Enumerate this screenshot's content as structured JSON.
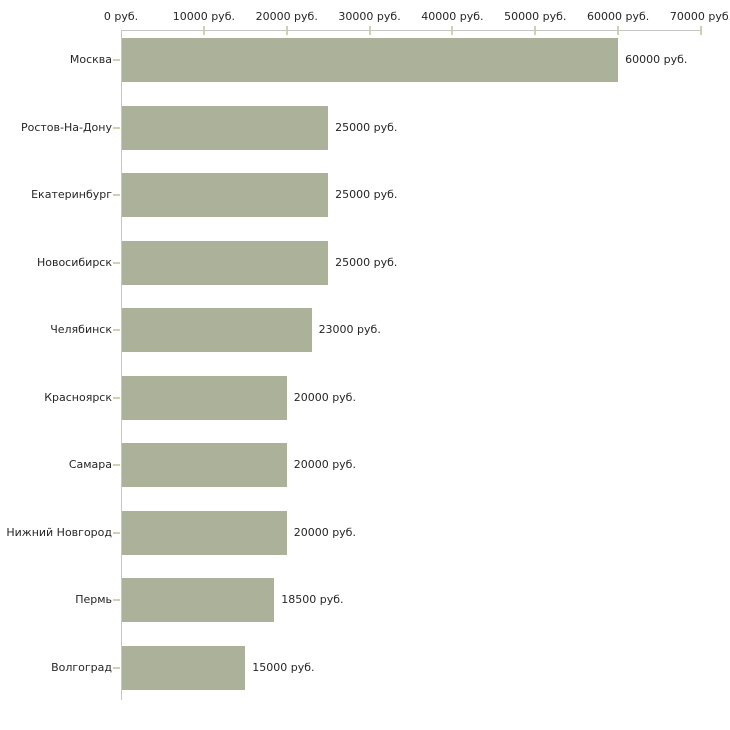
{
  "chart_data": {
    "type": "bar",
    "orientation": "horizontal",
    "title": "",
    "xlabel": "",
    "ylabel": "",
    "unit": "руб.",
    "categories": [
      "Москва",
      "Ростов-На-Дону",
      "Екатеринбург",
      "Новосибирск",
      "Челябинск",
      "Красноярск",
      "Самара",
      "Нижний Новгород",
      "Пермь",
      "Волгоград"
    ],
    "values": [
      60000,
      25000,
      25000,
      25000,
      23000,
      20000,
      20000,
      20000,
      18500,
      15000
    ],
    "value_labels": [
      "60000 руб.",
      "25000 руб.",
      "25000 руб.",
      "25000 руб.",
      "23000 руб.",
      "20000 руб.",
      "20000 руб.",
      "20000 руб.",
      "18500 руб.",
      "15000 руб."
    ],
    "x_ticks": [
      0,
      10000,
      20000,
      30000,
      40000,
      50000,
      60000,
      70000
    ],
    "x_tick_labels": [
      "0 руб.",
      "10000 руб.",
      "20000 руб.",
      "30000 руб.",
      "40000 руб.",
      "50000 руб.",
      "60000 руб.",
      "70000 руб."
    ],
    "xlim": [
      0,
      70000
    ],
    "grid": false,
    "legend": false,
    "axis_position": "top"
  },
  "style": {
    "bar_color": "#acb29a",
    "axis_line_color": "#c6c6c6",
    "tick_color": "#cfd2ab",
    "text_color": "#262626",
    "background": "#ffffff"
  }
}
